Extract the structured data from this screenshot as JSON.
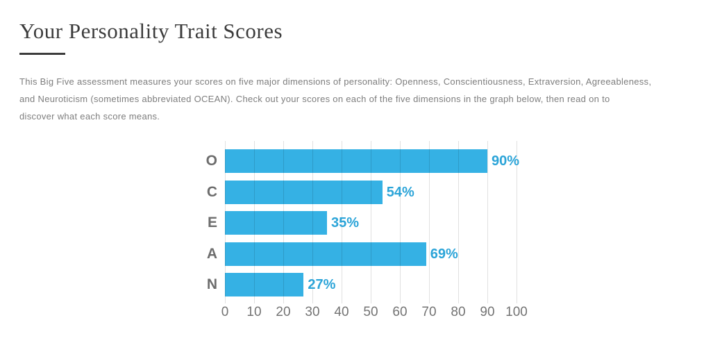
{
  "page": {
    "title": "Your Personality Trait Scores",
    "description_lines": [
      "This Big Five assessment measures your scores on five major dimensions of personality: Openness, Conscientiousness, Extraversion, Agreeableness,",
      "and Neuroticism (sometimes abbreviated OCEAN). Check out your scores on each of the five dimensions in the graph below, then read on to",
      "discover what each score means."
    ]
  },
  "chart_data": {
    "type": "bar",
    "orientation": "horizontal",
    "title": "",
    "categories": [
      "O",
      "C",
      "E",
      "A",
      "N"
    ],
    "values": [
      90,
      54,
      35,
      69,
      27
    ],
    "value_labels": [
      "90%",
      "54%",
      "35%",
      "69%",
      "27%"
    ],
    "x_ticks": [
      0,
      10,
      20,
      30,
      40,
      50,
      60,
      70,
      80,
      90,
      100
    ],
    "xlim": [
      0,
      100
    ],
    "grid": true,
    "legend": false,
    "bar_color": "#35b1e4",
    "value_label_color": "#2ba4d8",
    "category_label_color": "#6d6d6d",
    "tick_label_color": "#737373",
    "gridline_color": "#dcdcdc"
  }
}
